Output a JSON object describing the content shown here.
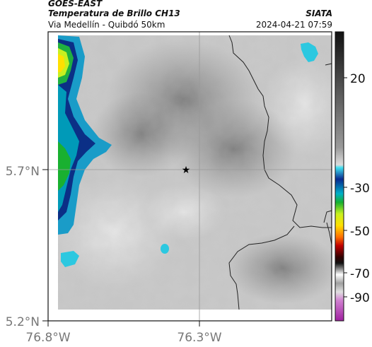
{
  "header": {
    "satellite": "GOES-EAST",
    "product": "Temperatura de Brillo CH13",
    "region": "Via Medellín - Quibdó 50km",
    "organization": "SIATA",
    "timestamp": "2024-04-21 07:59"
  },
  "map": {
    "y_ticks": [
      {
        "value": 5.7,
        "label": "5.7°N"
      },
      {
        "value": 5.2,
        "label": "5.2°N"
      }
    ],
    "x_ticks": [
      {
        "value": -76.8,
        "label": "76.8°W"
      },
      {
        "value": -76.3,
        "label": "76.3°W"
      }
    ],
    "marker": {
      "lon": -76.345,
      "lat": 5.7,
      "icon": "star-icon"
    }
  },
  "colorbar": {
    "ticks": [
      {
        "value": 20,
        "label": "20"
      },
      {
        "value": -30,
        "label": "-30"
      },
      {
        "value": -50,
        "label": "-50"
      },
      {
        "value": -70,
        "label": "-70"
      },
      {
        "value": -90,
        "label": "-90"
      }
    ]
  }
}
